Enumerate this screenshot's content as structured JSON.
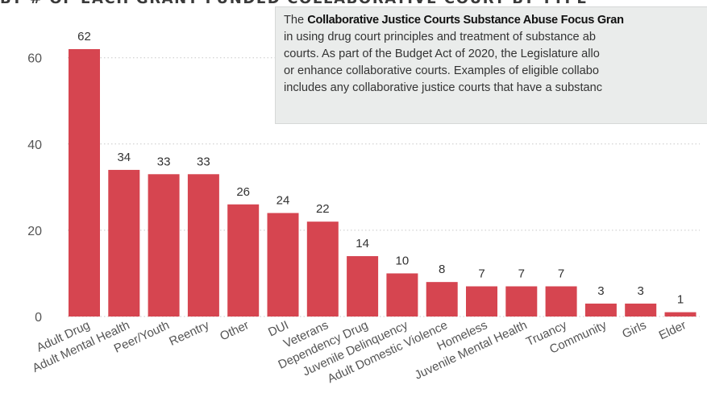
{
  "header": {
    "title": "BY # OF EACH GRANT FUNDED COLLABORATIVE COURT BY TYPE"
  },
  "tooltip": {
    "intro": "The",
    "program_name": "Collaborative Justice Courts Substance Abuse Focus Gran",
    "line1_rest": "",
    "line2": "in using drug court principles and treatment of substance ab",
    "line3": "courts. As part of the Budget Act of 2020, the Legislature allo",
    "line4": "or enhance collaborative courts. Examples of eligible collabo",
    "line5": "includes any collaborative justice courts that have a substanc"
  },
  "colors": {
    "bar": "#d64550",
    "grid": "#c8c8c8",
    "axis_text": "#555555",
    "label_text": "#333333",
    "tooltip_bg": "#eaeceb"
  },
  "chart_data": {
    "type": "bar",
    "title": "",
    "xlabel": "",
    "ylabel": "",
    "categories": [
      "Adult Drug",
      "Adult Mental Health",
      "Peer/Youth",
      "Reentry",
      "Other",
      "DUI",
      "Veterans",
      "Dependency Drug",
      "Juvenile Delinquency",
      "Adult Domestic Violence",
      "Homeless",
      "Juvenile Mental Health",
      "Truancy",
      "Community",
      "Girls",
      "Elder"
    ],
    "values": [
      62,
      34,
      33,
      33,
      26,
      24,
      22,
      14,
      10,
      8,
      7,
      7,
      7,
      3,
      3,
      1
    ],
    "ylim": [
      0,
      65
    ],
    "yticks": [
      0,
      20,
      40,
      60
    ],
    "grid": true,
    "data_labels": true
  }
}
